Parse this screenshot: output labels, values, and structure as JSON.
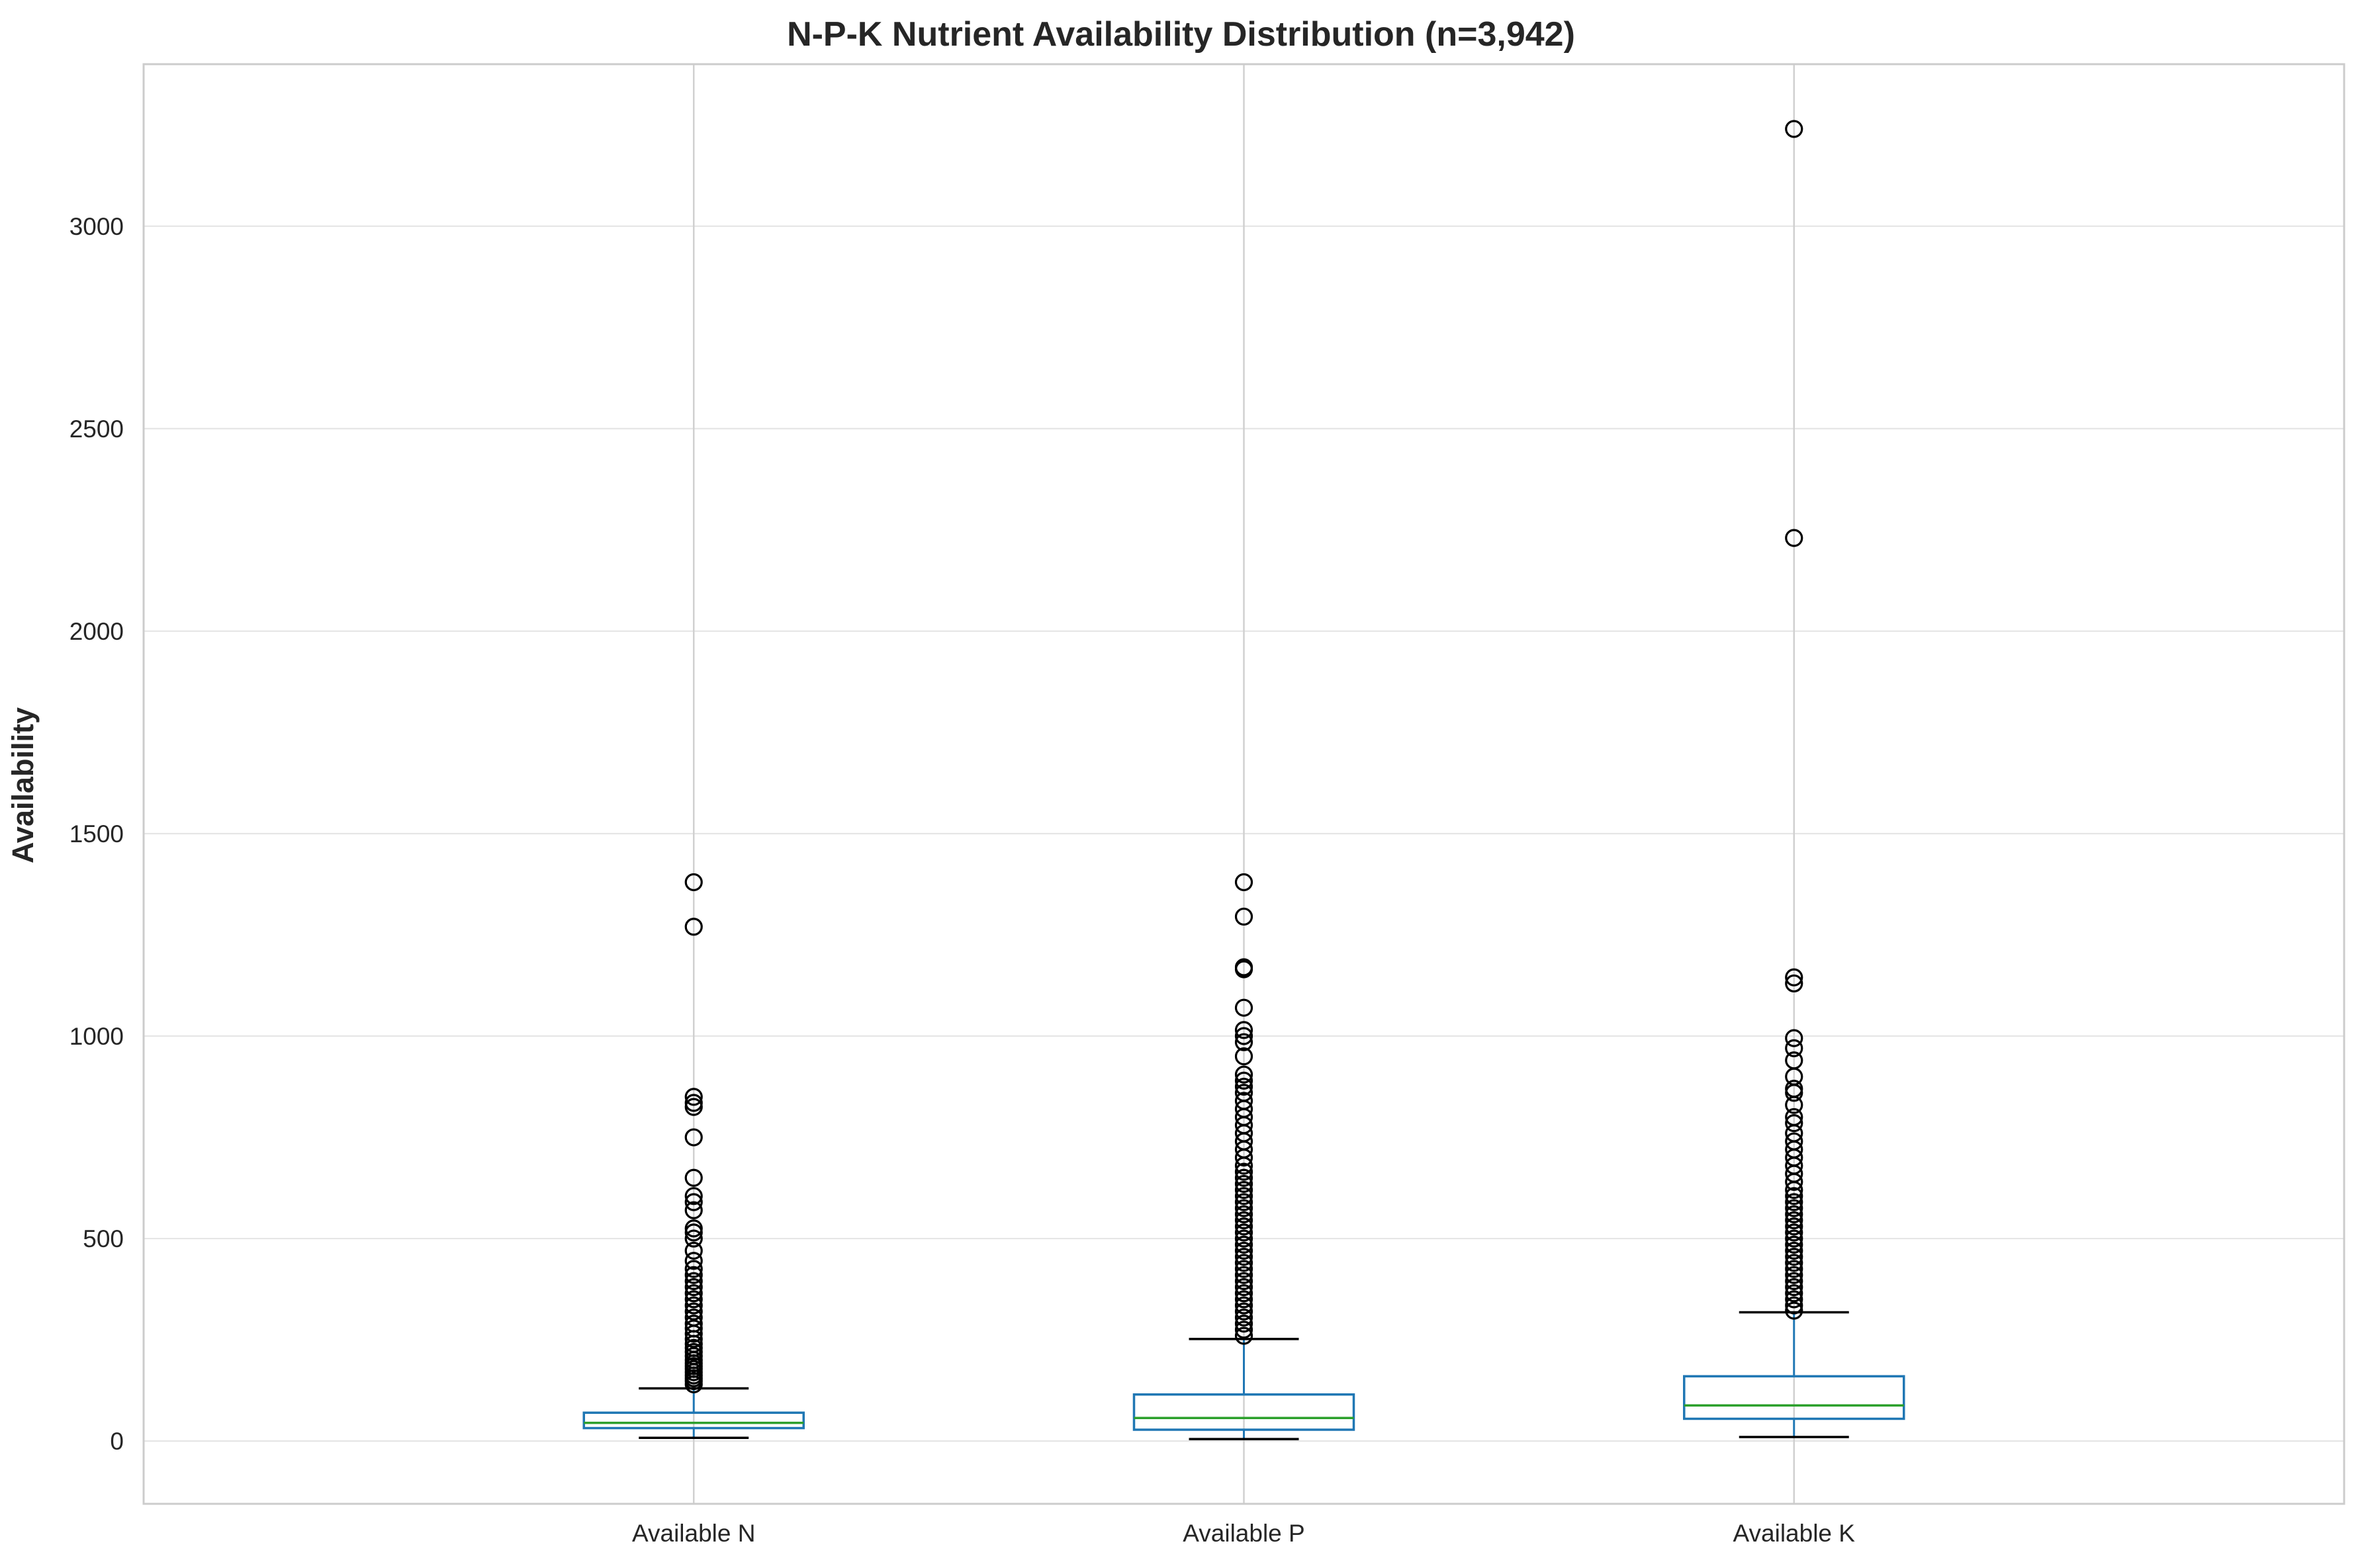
{
  "chart_data": {
    "type": "boxplot",
    "title": "N-P-K Nutrient Availability Distribution (n=3,942)",
    "xlabel": "",
    "ylabel": "Availability",
    "ylim": [
      -155,
      3400
    ],
    "yticks": [
      0,
      500,
      1000,
      1500,
      2000,
      2500,
      3000
    ],
    "grid": true,
    "legend": "none",
    "colors": {
      "box": "#1f77b4",
      "median": "#2ca02c",
      "whisker_cap": "#000000",
      "outlier": "#000000",
      "grid": "#e6e6e6",
      "spine": "#cccccc",
      "vgrid": "#d0d0d0"
    },
    "categories": [
      "Available N",
      "Available P",
      "Available K"
    ],
    "series": [
      {
        "label": "Available N",
        "whisker_low": 8,
        "q1": 32,
        "median": 45,
        "q3": 70,
        "whisker_high": 130,
        "outliers": [
          140,
          148,
          155,
          162,
          170,
          178,
          185,
          192,
          200,
          210,
          220,
          230,
          240,
          252,
          265,
          278,
          290,
          305,
          320,
          335,
          350,
          365,
          380,
          395,
          410,
          425,
          445,
          470,
          500,
          515,
          525,
          570,
          590,
          605,
          650,
          750,
          825,
          835,
          850,
          1270,
          1380
        ]
      },
      {
        "label": "Available P",
        "whisker_low": 5,
        "q1": 28,
        "median": 57,
        "q3": 115,
        "whisker_high": 252,
        "outliers": [
          260,
          275,
          290,
          305,
          320,
          335,
          350,
          365,
          380,
          395,
          410,
          425,
          440,
          455,
          470,
          485,
          500,
          515,
          530,
          545,
          560,
          575,
          590,
          605,
          620,
          635,
          650,
          665,
          680,
          700,
          720,
          740,
          760,
          780,
          800,
          820,
          840,
          860,
          875,
          890,
          905,
          950,
          985,
          1000,
          1015,
          1070,
          1165,
          1170,
          1295,
          1380
        ]
      },
      {
        "label": "Available K",
        "whisker_low": 10,
        "q1": 55,
        "median": 88,
        "q3": 160,
        "whisker_high": 318,
        "outliers": [
          322,
          335,
          350,
          365,
          380,
          395,
          410,
          425,
          440,
          455,
          470,
          485,
          500,
          515,
          530,
          545,
          560,
          575,
          590,
          605,
          620,
          640,
          660,
          680,
          700,
          720,
          740,
          760,
          785,
          800,
          830,
          860,
          870,
          900,
          940,
          970,
          995,
          1130,
          1145,
          2230,
          3240
        ]
      }
    ]
  }
}
